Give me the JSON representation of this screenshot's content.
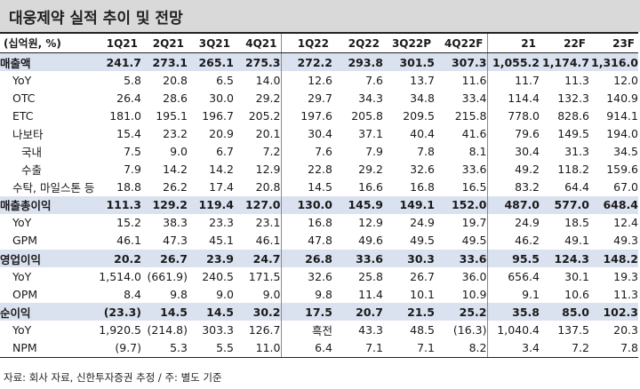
{
  "title": "대웅제약 실적 추이 및 전망",
  "header": [
    "(십억원, %)",
    "1Q21",
    "2Q21",
    "3Q21",
    "4Q21",
    "1Q22",
    "2Q22",
    "3Q22P",
    "4Q22F",
    "21",
    "22F",
    "23F"
  ],
  "rows": [
    {
      "label": "매출액",
      "type": "main",
      "values": [
        "241.7",
        "273.1",
        "265.1",
        "275.3",
        "272.2",
        "293.8",
        "301.5",
        "307.3",
        "1,055.2",
        "1,174.7",
        "1,316.0"
      ]
    },
    {
      "label": "YoY",
      "type": "sub",
      "values": [
        "5.8",
        "20.8",
        "6.5",
        "14.0",
        "12.6",
        "7.6",
        "13.7",
        "11.6",
        "11.7",
        "11.3",
        "12.0"
      ]
    },
    {
      "label": "OTC",
      "type": "sub",
      "values": [
        "26.4",
        "28.6",
        "30.0",
        "29.2",
        "29.7",
        "34.3",
        "34.8",
        "33.4",
        "114.4",
        "132.3",
        "140.9"
      ]
    },
    {
      "label": "ETC",
      "type": "sub",
      "values": [
        "181.0",
        "195.1",
        "196.7",
        "205.2",
        "197.6",
        "205.8",
        "209.5",
        "215.8",
        "778.0",
        "828.6",
        "914.1"
      ]
    },
    {
      "label": "나보타",
      "type": "sub",
      "values": [
        "15.4",
        "23.2",
        "20.9",
        "20.1",
        "30.4",
        "37.1",
        "40.4",
        "41.6",
        "79.6",
        "149.5",
        "194.0"
      ]
    },
    {
      "label": "국내",
      "type": "subsub",
      "values": [
        "7.5",
        "9.0",
        "6.7",
        "7.2",
        "7.6",
        "7.9",
        "7.8",
        "8.1",
        "30.4",
        "31.3",
        "34.5"
      ]
    },
    {
      "label": "수출",
      "type": "subsub",
      "values": [
        "7.9",
        "14.2",
        "14.2",
        "12.9",
        "22.8",
        "29.2",
        "32.6",
        "33.6",
        "49.2",
        "118.2",
        "159.6"
      ]
    },
    {
      "label": "수탁, 마일스톤 등",
      "type": "sub",
      "values": [
        "18.8",
        "26.2",
        "17.4",
        "20.8",
        "14.5",
        "16.6",
        "16.8",
        "16.5",
        "83.2",
        "64.4",
        "67.0"
      ]
    },
    {
      "label": "매출총이익",
      "type": "main",
      "values": [
        "111.3",
        "129.2",
        "119.4",
        "127.0",
        "130.0",
        "145.9",
        "149.1",
        "152.0",
        "487.0",
        "577.0",
        "648.4"
      ]
    },
    {
      "label": "YoY",
      "type": "sub",
      "values": [
        "15.2",
        "38.3",
        "23.3",
        "23.1",
        "16.8",
        "12.9",
        "24.9",
        "19.7",
        "24.9",
        "18.5",
        "12.4"
      ]
    },
    {
      "label": "GPM",
      "type": "sub",
      "values": [
        "46.1",
        "47.3",
        "45.1",
        "46.1",
        "47.8",
        "49.6",
        "49.5",
        "49.5",
        "46.2",
        "49.1",
        "49.3"
      ]
    },
    {
      "label": "영업이익",
      "type": "main",
      "values": [
        "20.2",
        "26.7",
        "23.9",
        "24.7",
        "26.8",
        "33.6",
        "30.3",
        "33.6",
        "95.5",
        "124.3",
        "148.2"
      ]
    },
    {
      "label": "YoY",
      "type": "sub",
      "values": [
        "1,514.0",
        "(661.9)",
        "240.5",
        "171.5",
        "32.6",
        "25.8",
        "26.7",
        "36.0",
        "656.4",
        "30.1",
        "19.3"
      ]
    },
    {
      "label": "OPM",
      "type": "sub",
      "values": [
        "8.4",
        "9.8",
        "9.0",
        "9.0",
        "9.8",
        "11.4",
        "10.1",
        "10.9",
        "9.1",
        "10.6",
        "11.3"
      ]
    },
    {
      "label": "순이익",
      "type": "main",
      "values": [
        "(23.3)",
        "14.5",
        "14.5",
        "30.2",
        "17.5",
        "20.7",
        "21.5",
        "25.2",
        "35.8",
        "85.0",
        "102.3"
      ]
    },
    {
      "label": "YoY",
      "type": "sub",
      "values": [
        "1,920.5",
        "(214.8)",
        "303.3",
        "126.7",
        "흑전",
        "43.3",
        "48.5",
        "(16.3)",
        "1,040.4",
        "137.5",
        "20.3"
      ]
    },
    {
      "label": "NPM",
      "type": "sub",
      "values": [
        "(9.7)",
        "5.3",
        "5.5",
        "11.0",
        "6.4",
        "7.1",
        "7.1",
        "8.2",
        "3.4",
        "7.2",
        "7.8"
      ]
    }
  ],
  "source": "자료: 회사 자료, 신한투자증권 추정 / 주: 별도 기준"
}
